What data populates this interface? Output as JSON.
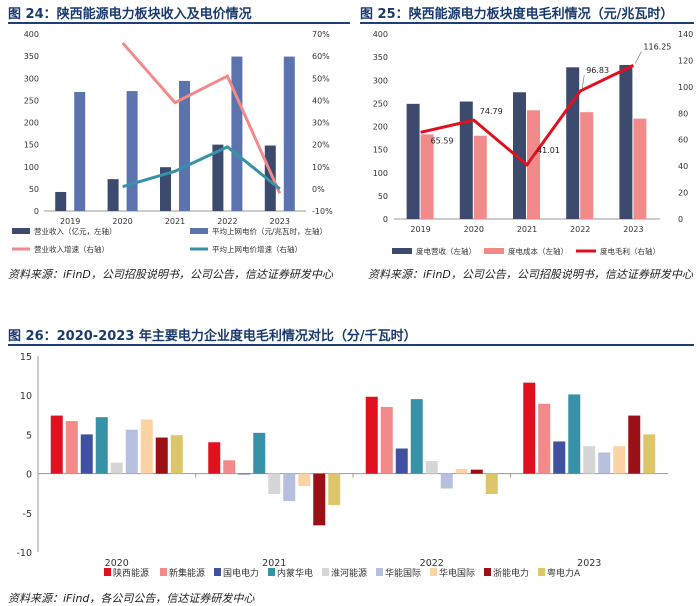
{
  "figures": [
    {
      "title": "图 24：陕西能源电力板块收入及电价情况",
      "source": "资料来源：iFinD，公司招股说明书，公司公告，信达证券研发中心"
    },
    {
      "title": "图 25：陕西能源电力板块度电毛利情况（元/兆瓦时）",
      "source": "资料来源：iFinD，公司公告，公司招股说明书，信达证券研发中心"
    },
    {
      "title": "图 26：2020-2023 年主要电力企业度电毛利情况对比（分/千瓦时）",
      "source": "资料来源：iFind，各公司公告，信达证券研发中心"
    }
  ],
  "colors": {
    "title": "#1a3a6e",
    "navy": "#3c4a6e",
    "blue": "#5b74ad",
    "salmon": "#f28a8a",
    "teal": "#3792a8",
    "red": "#e0101e"
  },
  "chart_data": [
    {
      "type": "bar",
      "categories": [
        "2019",
        "2020",
        "2021",
        "2022",
        "2023"
      ],
      "left_ylim": [
        0,
        400
      ],
      "left_ticks": [
        "0",
        "50",
        "100",
        "150",
        "200",
        "250",
        "300",
        "350",
        "400"
      ],
      "right_ylim": [
        -10,
        70
      ],
      "right_ticks": [
        "-10%",
        "0%",
        "10%",
        "20%",
        "30%",
        "40%",
        "50%",
        "60%",
        "70%"
      ],
      "series": [
        {
          "name": "营业收入（亿元，左轴）",
          "kind": "bar",
          "axis": "left",
          "color": "#3c4a6e",
          "values": [
            43,
            72,
            99,
            150,
            148
          ]
        },
        {
          "name": "平均上网电价（元/兆瓦时，左轴）",
          "kind": "bar",
          "axis": "left",
          "color": "#5b74ad",
          "values": [
            269,
            271,
            294,
            349,
            349
          ]
        },
        {
          "name": "营业收入增速（右轴）",
          "kind": "line",
          "axis": "right",
          "color": "#f28a8a",
          "values": [
            null,
            66,
            39,
            51,
            -2
          ]
        },
        {
          "name": "平均上网电价增速（右轴）",
          "kind": "line",
          "axis": "right",
          "color": "#3792a8",
          "values": [
            null,
            1,
            8,
            19,
            0
          ]
        }
      ]
    },
    {
      "type": "bar",
      "categories": [
        "2019",
        "2020",
        "2021",
        "2022",
        "2023"
      ],
      "left_ylim": [
        0,
        400
      ],
      "left_ticks": [
        "0",
        "50",
        "100",
        "150",
        "200",
        "250",
        "300",
        "350",
        "400"
      ],
      "right_ylim": [
        0,
        140
      ],
      "right_ticks": [
        "0",
        "20",
        "40",
        "60",
        "80",
        "100",
        "120",
        "140"
      ],
      "series": [
        {
          "name": "度电营收（左轴）",
          "kind": "bar",
          "axis": "left",
          "color": "#3c4a6e",
          "values": [
            249,
            254,
            274,
            328,
            333
          ]
        },
        {
          "name": "度电成本（左轴）",
          "kind": "bar",
          "axis": "left",
          "color": "#f28a8a",
          "values": [
            183,
            180,
            235,
            231,
            217
          ]
        },
        {
          "name": "度电毛利（右轴）",
          "kind": "line",
          "axis": "right",
          "color": "#e0101e",
          "values": [
            65.59,
            74.79,
            41.01,
            96.83,
            116.25
          ]
        }
      ],
      "data_labels": [
        "65.59",
        "74.79",
        "41.01",
        "96.83",
        "116.25"
      ]
    },
    {
      "type": "bar",
      "categories": [
        "2020",
        "2021",
        "2022",
        "2023"
      ],
      "ylim": [
        -10,
        15
      ],
      "yticks": [
        "-10",
        "-5",
        "0",
        "5",
        "10",
        "15"
      ],
      "grid": false,
      "legend": "bottom",
      "series": [
        {
          "name": "陕西能源",
          "color": "#e0101e",
          "values": [
            7.4,
            4.0,
            9.8,
            11.6
          ]
        },
        {
          "name": "新集能源",
          "color": "#f28a8a",
          "values": [
            6.7,
            1.7,
            8.5,
            8.9
          ]
        },
        {
          "name": "国电电力",
          "color": "#3f51a0",
          "values": [
            5.0,
            -0.1,
            3.2,
            4.1
          ]
        },
        {
          "name": "内蒙华电",
          "color": "#3792a8",
          "values": [
            7.2,
            5.2,
            9.5,
            10.1
          ]
        },
        {
          "name": "淮河能源",
          "color": "#d6d6d6",
          "values": [
            1.4,
            -2.6,
            1.6,
            3.5
          ]
        },
        {
          "name": "华能国际",
          "color": "#b6c0de",
          "values": [
            5.6,
            -3.5,
            -1.9,
            2.7
          ]
        },
        {
          "name": "华电国际",
          "color": "#fcd3a3",
          "values": [
            6.9,
            -1.6,
            0.6,
            3.5
          ]
        },
        {
          "name": "浙能电力",
          "color": "#9b0f16",
          "values": [
            4.6,
            -6.6,
            0.5,
            7.4
          ]
        },
        {
          "name": "粤电力A",
          "color": "#dcc669",
          "values": [
            4.9,
            -4.0,
            -2.6,
            5.0
          ]
        }
      ]
    }
  ]
}
